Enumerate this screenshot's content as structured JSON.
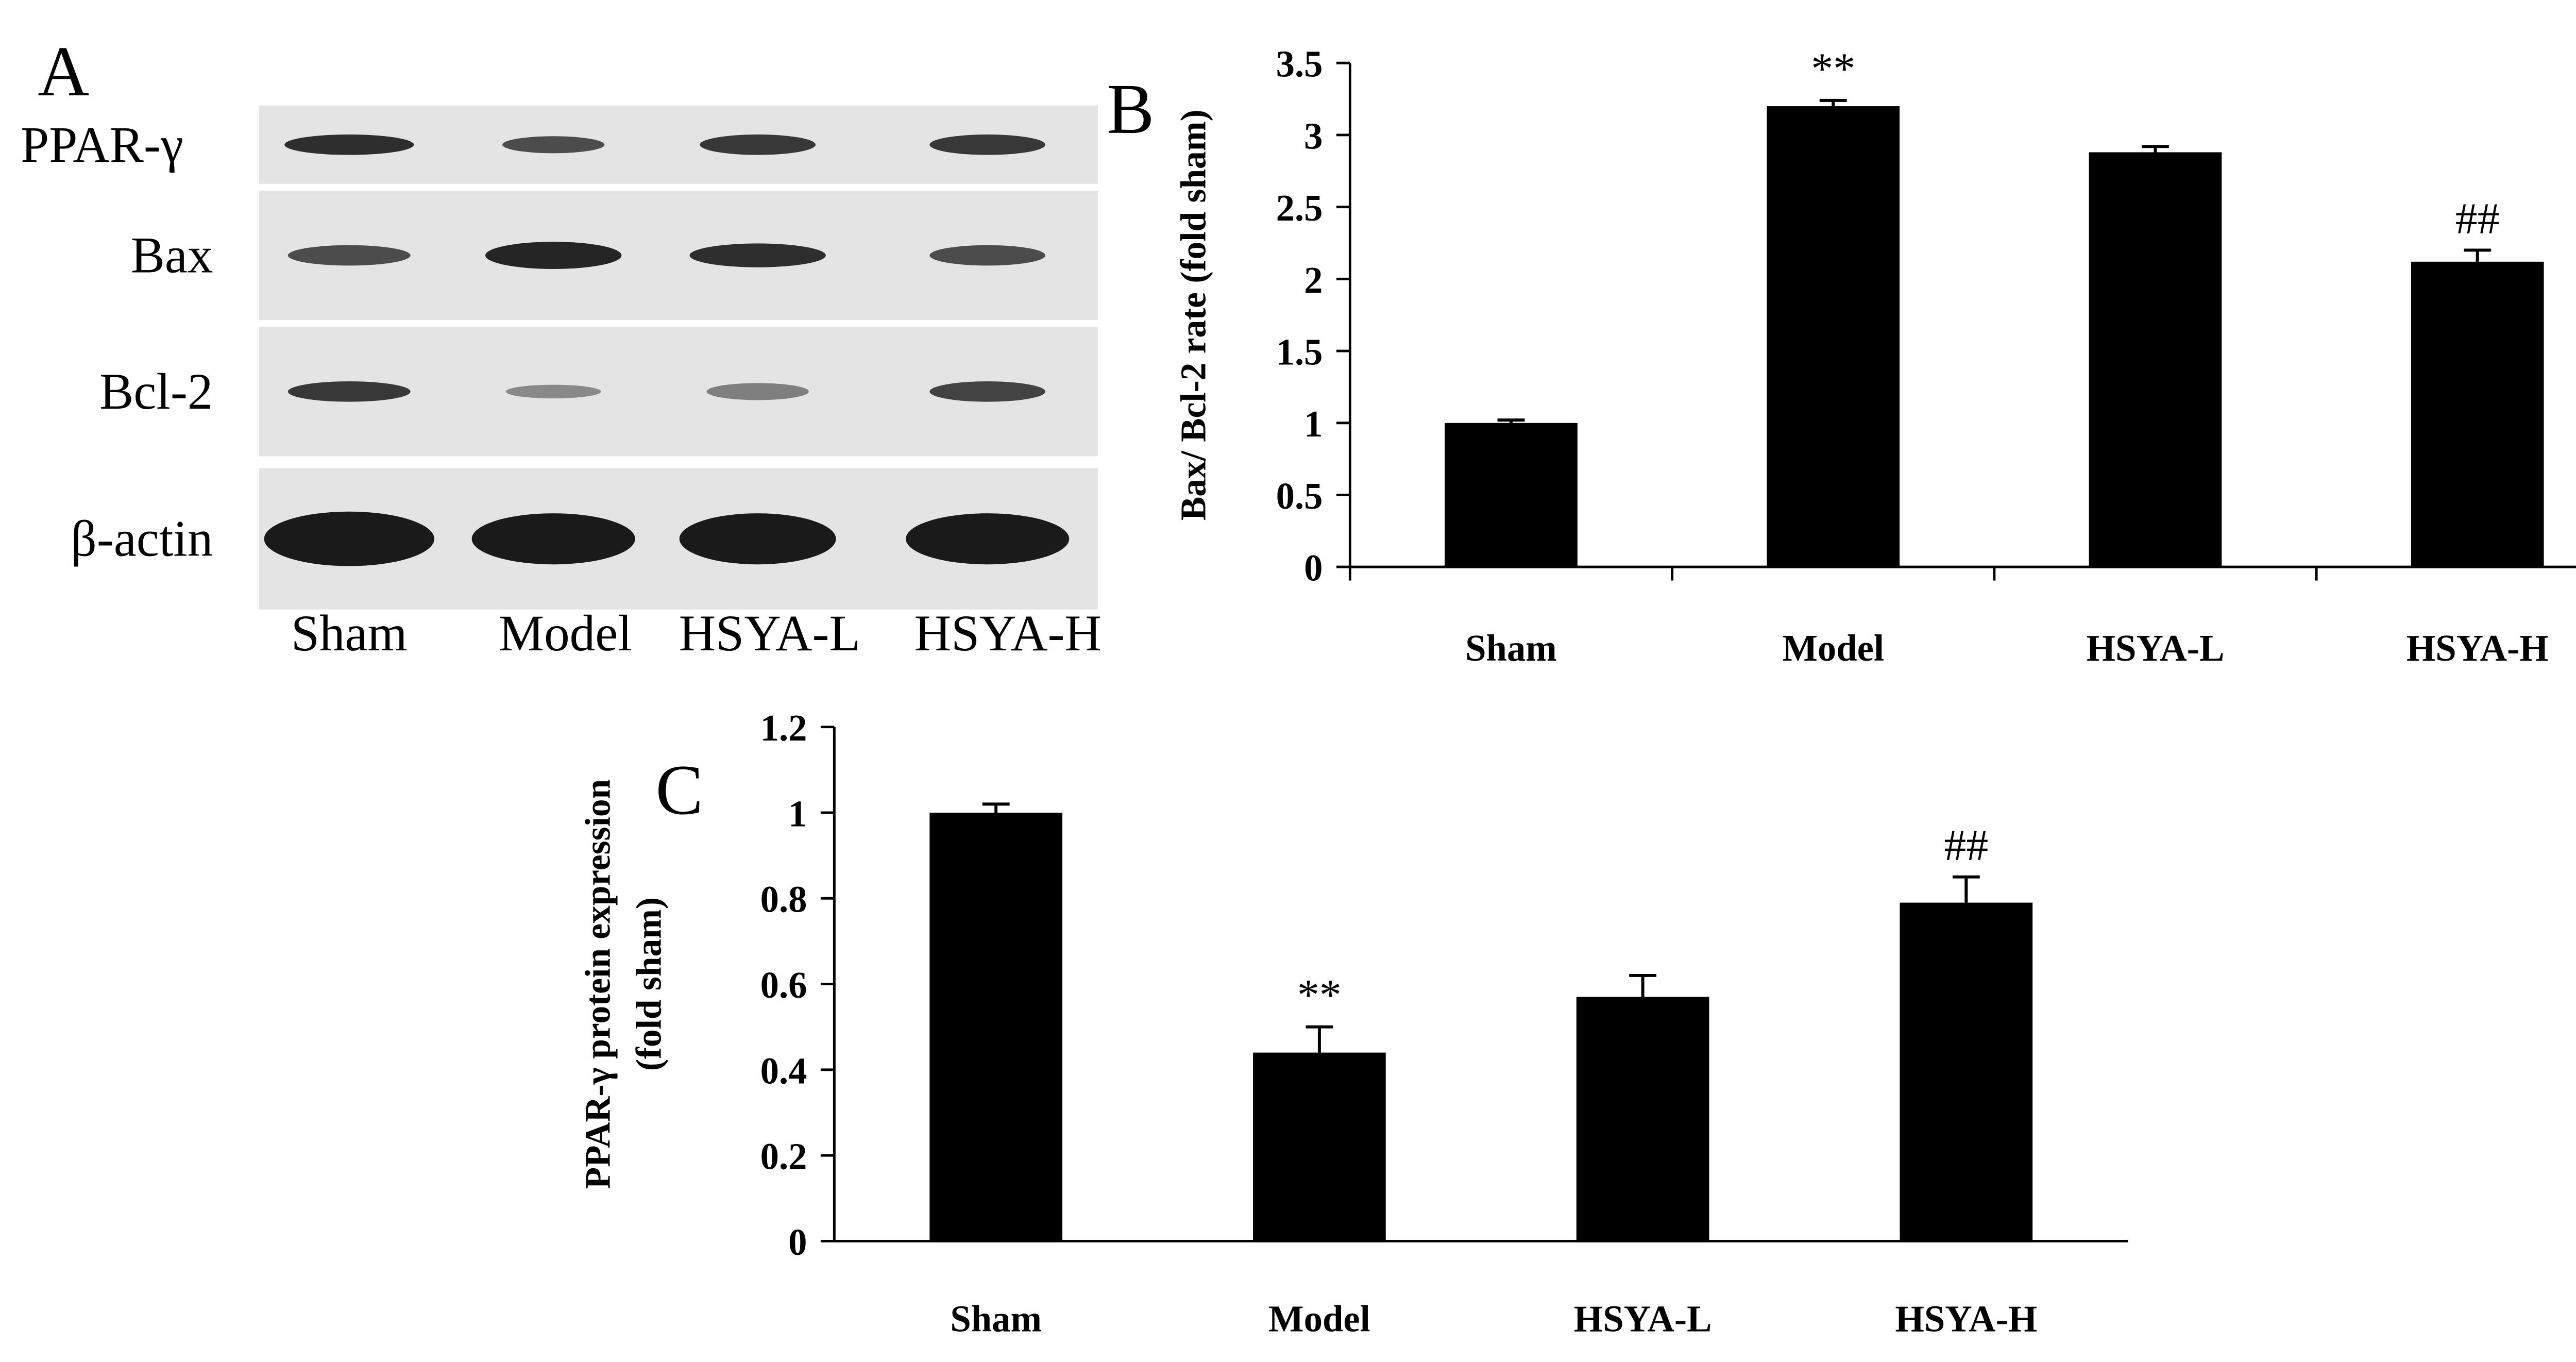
{
  "blot": {
    "panel_label": "A",
    "rows": [
      "PPAR-γ",
      "Bax",
      "Bcl-2",
      "β-actin"
    ],
    "lanes": [
      "Sham",
      "Model",
      "HSYA-L",
      "HSYA-H"
    ]
  },
  "chart_data": [
    {
      "type": "bar",
      "panel_label": "B",
      "ylabel": "Bax/ Bcl-2 rate (fold sham)",
      "categories": [
        "Sham",
        "Model",
        "HSYA-L",
        "HSYA-H"
      ],
      "values": [
        1.0,
        3.2,
        2.88,
        2.12
      ],
      "errors": [
        0.02,
        0.04,
        0.04,
        0.08
      ],
      "significance": [
        null,
        "**",
        null,
        "##"
      ],
      "color": "#000000",
      "ylim": [
        0,
        3.5
      ],
      "yticks": [
        0,
        0.5,
        1,
        1.5,
        2,
        2.5,
        3,
        3.5
      ]
    },
    {
      "type": "bar",
      "panel_label": "C",
      "ylabel": [
        "PPAR-γ protein expression",
        "(fold sham)"
      ],
      "categories": [
        "Sham",
        "Model",
        "HSYA-L",
        "HSYA-H"
      ],
      "values": [
        1.0,
        0.44,
        0.57,
        0.79
      ],
      "errors": [
        0.02,
        0.06,
        0.05,
        0.06
      ],
      "significance": [
        null,
        "**",
        null,
        "##"
      ],
      "color": "#000000",
      "ylim": [
        0,
        1.2
      ],
      "yticks": [
        0,
        0.2,
        0.4,
        0.6,
        0.8,
        1,
        1.2
      ]
    }
  ]
}
